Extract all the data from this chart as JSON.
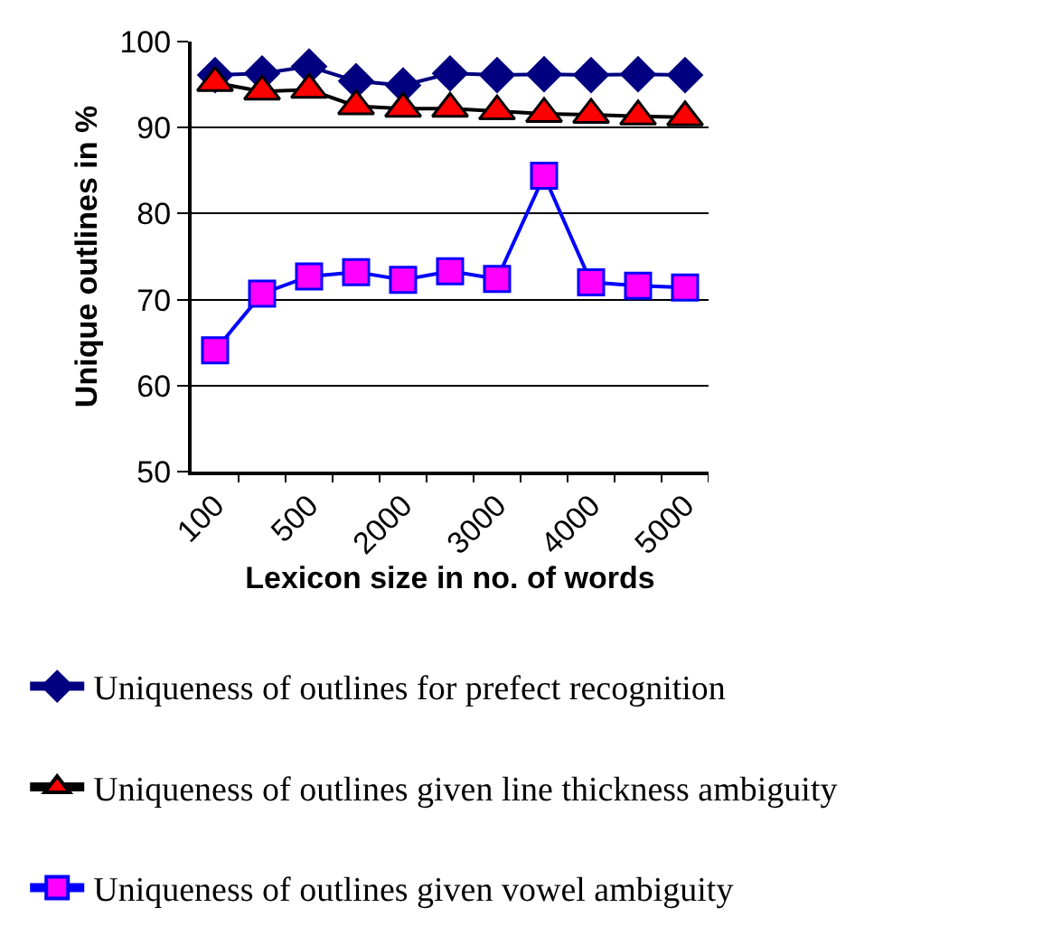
{
  "chart_data": {
    "type": "line",
    "xlabel": "Lexicon size in no. of words",
    "ylabel": "Unique outlines in %",
    "categories": [
      "100",
      null,
      "500",
      null,
      "2000",
      null,
      "3000",
      null,
      "4000",
      null,
      "5000"
    ],
    "series": [
      {
        "name": "Uniqueness of outlines for prefect recognition",
        "color": "#000080",
        "marker": "diamond",
        "values": [
          96.1,
          96.3,
          97.1,
          95.4,
          94.9,
          96.3,
          96.1,
          96.2,
          96.1,
          96.2,
          96.1
        ]
      },
      {
        "name": "Uniqueness of outlines given line thickness ambiguity",
        "color": "#000000",
        "colors": [
          "#ff0000",
          "#ff0000",
          "#ff0000",
          "#ff0000",
          "#ff0000",
          "#ff0000",
          "#ff0000",
          "#ff0000",
          "#ff0000",
          "#ff0000",
          "#ff0000"
        ],
        "marker": "triangle",
        "values": [
          95.2,
          94.2,
          94.4,
          92.5,
          92.2,
          92.2,
          91.9,
          91.6,
          91.5,
          91.3,
          91.2
        ]
      },
      {
        "name": "Uniqueness of outlines given vowel ambiguity",
        "color": "#0000ff",
        "colors": [
          "#ff00ff",
          "#ff00ff",
          "#ff00ff",
          "#ff00ff",
          "#ff00ff",
          "#ff00ff",
          "#ff00ff",
          "#ff00ff",
          "#ff00ff",
          "#ff00ff",
          "#ff00ff"
        ],
        "marker": "square",
        "values": [
          64.1,
          70.7,
          72.7,
          73.2,
          72.3,
          73.3,
          72.4,
          84.4,
          72.0,
          71.6,
          71.4
        ]
      }
    ],
    "ylim": [
      50,
      100
    ],
    "yticks": [
      50,
      60,
      70,
      80,
      90,
      100
    ],
    "grid": "y",
    "legend": "bottom",
    "line_style": "solid"
  }
}
